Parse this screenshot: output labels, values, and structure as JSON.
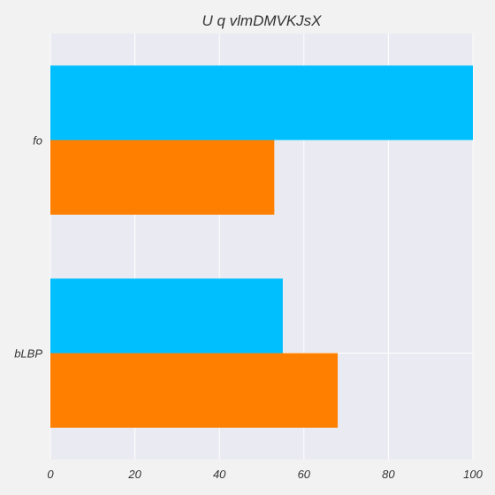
{
  "chart_data": {
    "type": "bar",
    "orientation": "horizontal",
    "title": "U q vlmDMVKJsX",
    "xlabel": "",
    "ylabel": "",
    "categories": [
      "fo",
      "bLBP"
    ],
    "series": [
      {
        "color": "#00bfff",
        "values": [
          100,
          55
        ]
      },
      {
        "color": "#ff8000",
        "values": [
          53,
          68
        ]
      }
    ],
    "xlim": [
      0,
      100
    ],
    "xticks": [
      0,
      20,
      40,
      60,
      80,
      100
    ],
    "xtick_labels": [
      "0",
      "20",
      "40",
      "60",
      "80",
      "100"
    ],
    "grid": true,
    "legend": "none",
    "plot_background": "#eaeaf2"
  }
}
